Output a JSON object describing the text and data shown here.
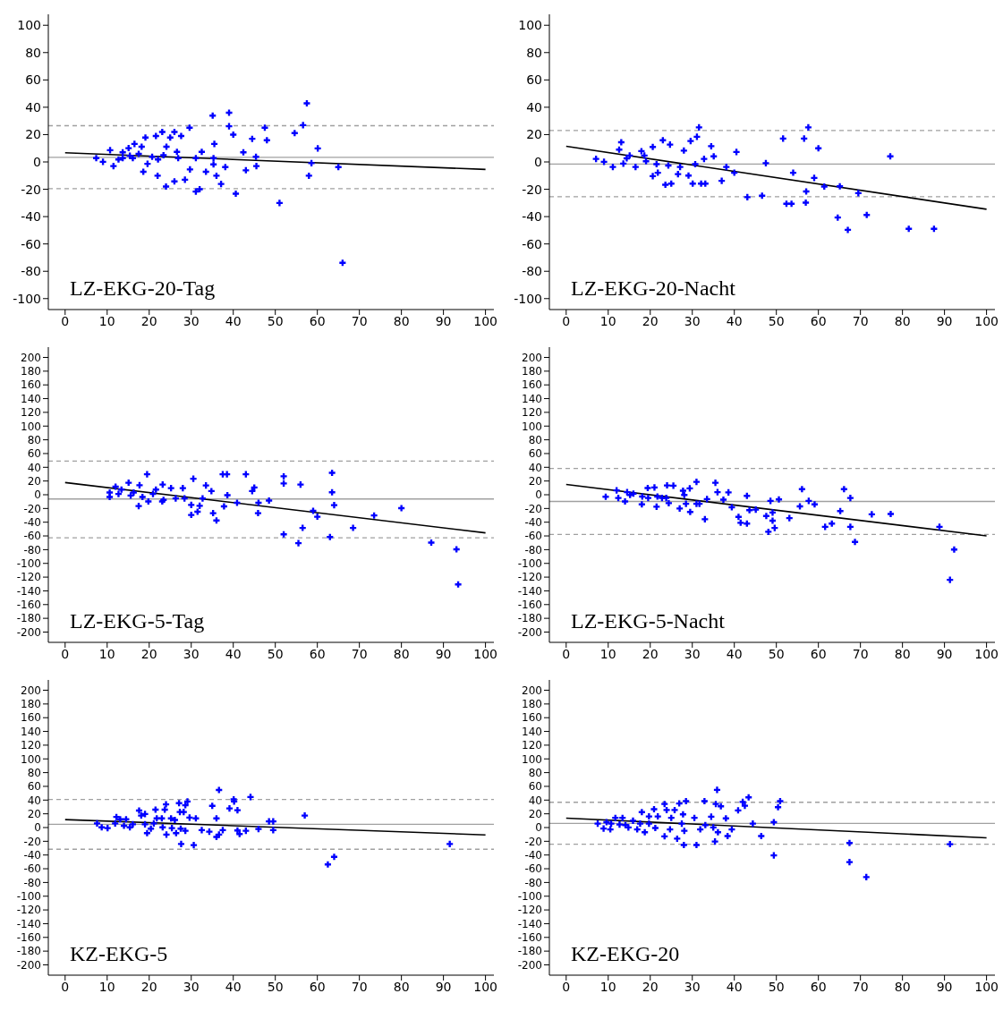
{
  "chart_data": [
    {
      "type": "scatter",
      "title": "LZ-EKG-20-Tag",
      "xlim": [
        -4,
        102
      ],
      "ylim": [
        -108,
        108
      ],
      "xticks": [
        0,
        10,
        20,
        30,
        40,
        50,
        60,
        70,
        80,
        90,
        100
      ],
      "yticks": [
        -100,
        -80,
        -60,
        -40,
        -20,
        0,
        20,
        40,
        60,
        80,
        100
      ],
      "ref_lines": [
        {
          "axis": "y",
          "value": 3.4,
          "color": "#a0a0a0",
          "line_style": "solid"
        },
        {
          "axis": "y",
          "value": 26.5,
          "color": "#a0a0a0",
          "line_style": "dashed"
        },
        {
          "axis": "y",
          "value": -19.6,
          "color": "#a0a0a0",
          "line_style": "dashed"
        }
      ],
      "series": [
        {
          "type": "scatter",
          "color": "#0000ff",
          "marker": "cross",
          "x": [
            7.4,
            9.0,
            10.7,
            11.5,
            12.7,
            13.7,
            15.1,
            16.5,
            16.1,
            18.2,
            18.6,
            19.1,
            19.6,
            21.6,
            22.0,
            23.1,
            24.0,
            24.1,
            25.0,
            26.0,
            26.0,
            26.6,
            27.6,
            28.5,
            29.6,
            29.7,
            31.1,
            32.0,
            32.5,
            33.5,
            35.1,
            35.5,
            35.3,
            36.0,
            37.1,
            38.1,
            39.0,
            39.0,
            40.0,
            40.6,
            42.4,
            43.0,
            44.5,
            45.4,
            45.5,
            47.5,
            48.0,
            51.0,
            54.6,
            56.6,
            57.5,
            58.0,
            58.6,
            60.1,
            65.0,
            66.0,
            13.7,
            15.4,
            17.5,
            20.7,
            22.1,
            23.4,
            26.9,
            31.1,
            35.3
          ],
          "values": [
            2.8,
            0.1,
            8.6,
            -3.0,
            1.8,
            7.0,
            10.1,
            13.2,
            2.8,
            11.1,
            -7.2,
            17.8,
            -1.4,
            19.0,
            -10.1,
            21.9,
            -18.0,
            11.1,
            17.8,
            21.9,
            -14.2,
            7.4,
            19.0,
            -13.0,
            25.0,
            -5.5,
            -21.7,
            -20.0,
            7.4,
            -7.2,
            33.9,
            13.2,
            -1.8,
            -10.1,
            -16.1,
            -3.8,
            36.0,
            26.1,
            20.0,
            -23.2,
            7.0,
            -6.1,
            16.9,
            3.8,
            -3.0,
            25.0,
            15.9,
            -30.0,
            21.1,
            26.9,
            42.9,
            -10.1,
            -0.9,
            9.9,
            -3.8,
            -73.8,
            2.8,
            4.5,
            5.9,
            3.8,
            1.8,
            4.9,
            2.8,
            2.8,
            2.8
          ]
        },
        {
          "type": "line",
          "color": "#000000",
          "line_style": "solid",
          "x": [
            0,
            100
          ],
          "values": [
            6.7,
            -5.5
          ]
        }
      ]
    },
    {
      "type": "scatter",
      "title": "LZ-EKG-20-Nacht",
      "xlim": [
        -4,
        102
      ],
      "ylim": [
        -108,
        108
      ],
      "xticks": [
        0,
        10,
        20,
        30,
        40,
        50,
        60,
        70,
        80,
        90,
        100
      ],
      "yticks": [
        -100,
        -80,
        -60,
        -40,
        -20,
        0,
        20,
        40,
        60,
        80,
        100
      ],
      "ref_lines": [
        {
          "axis": "y",
          "value": -1.6,
          "color": "#a0a0a0",
          "line_style": "solid"
        },
        {
          "axis": "y",
          "value": 23.0,
          "color": "#a0a0a0",
          "line_style": "dashed"
        },
        {
          "axis": "y",
          "value": -25.5,
          "color": "#a0a0a0",
          "line_style": "dashed"
        }
      ],
      "series": [
        {
          "type": "scatter",
          "color": "#0000ff",
          "marker": "cross",
          "x": [
            7.1,
            9.0,
            11.1,
            12.6,
            13.1,
            13.6,
            15.1,
            16.5,
            17.9,
            19.0,
            20.6,
            20.6,
            21.8,
            23.0,
            23.6,
            24.7,
            25.0,
            26.6,
            28.0,
            29.1,
            29.6,
            30.1,
            31.1,
            31.6,
            32.1,
            33.1,
            32.8,
            34.5,
            35.1,
            37.0,
            38.1,
            40.0,
            40.5,
            43.1,
            46.6,
            47.5,
            51.6,
            52.4,
            53.6,
            54.0,
            56.6,
            57.0,
            57.1,
            57.6,
            59.0,
            60.0,
            61.4,
            65.1,
            64.6,
            67.0,
            69.5,
            71.5,
            77.1,
            81.5,
            87.5,
            14.4,
            18.6,
            21.5,
            24.3,
            27.1,
            30.7
          ],
          "values": [
            2.2,
            0.1,
            -3.7,
            9.0,
            14.4,
            -1.2,
            4.7,
            -3.7,
            7.9,
            0.5,
            11.0,
            -10.4,
            -7.9,
            15.9,
            -16.7,
            12.7,
            -15.9,
            -8.9,
            8.3,
            -10.0,
            15.3,
            -15.9,
            18.4,
            25.3,
            -15.9,
            -15.9,
            2.2,
            11.5,
            4.1,
            -13.8,
            -3.7,
            -7.9,
            7.3,
            -25.8,
            -24.7,
            -0.9,
            17.1,
            -30.6,
            -30.6,
            -7.9,
            17.1,
            -29.8,
            -21.6,
            25.3,
            -11.7,
            10.0,
            -18.0,
            -17.8,
            -40.7,
            -49.7,
            -22.8,
            -38.8,
            4.1,
            -48.9,
            -48.9,
            2.6,
            4.7,
            -1.6,
            -2.6,
            -3.7,
            -1.6
          ]
        },
        {
          "type": "line",
          "color": "#000000",
          "line_style": "solid",
          "x": [
            0,
            100
          ],
          "values": [
            11.5,
            -34.6
          ]
        }
      ]
    },
    {
      "type": "scatter",
      "title": "LZ-EKG-5-Tag",
      "xlim": [
        -4,
        102
      ],
      "ylim": [
        -215,
        215
      ],
      "xticks": [
        0,
        10,
        20,
        30,
        40,
        50,
        60,
        70,
        80,
        90,
        100
      ],
      "yticks": [
        -200,
        -180,
        -160,
        -140,
        -120,
        -100,
        -80,
        -60,
        -40,
        -20,
        0,
        20,
        40,
        60,
        80,
        100,
        120,
        140,
        160,
        180,
        200
      ],
      "ref_lines": [
        {
          "axis": "y",
          "value": -6.2,
          "color": "#a0a0a0",
          "line_style": "solid"
        },
        {
          "axis": "y",
          "value": 49.1,
          "color": "#a0a0a0",
          "line_style": "dashed"
        },
        {
          "axis": "y",
          "value": -62.8,
          "color": "#a0a0a0",
          "line_style": "dashed"
        }
      ],
      "series": [
        {
          "type": "scatter",
          "color": "#0000ff",
          "marker": "cross",
          "x": [
            10.6,
            10.6,
            12.0,
            13.4,
            15.1,
            15.6,
            17.5,
            17.7,
            19.5,
            19.8,
            21.6,
            23.2,
            23.1,
            25.2,
            28.0,
            30.0,
            30.0,
            30.5,
            31.5,
            32.0,
            33.5,
            34.8,
            35.2,
            36.0,
            37.5,
            38.5,
            38.6,
            37.8,
            40.9,
            43.0,
            44.5,
            45.0,
            45.9,
            46.0,
            48.5,
            52.0,
            52.0,
            52.0,
            56.0,
            56.5,
            55.5,
            59.0,
            60.0,
            63.0,
            63.5,
            63.5,
            64.0,
            68.5,
            73.5,
            80.0,
            87.1,
            93.1,
            93.5,
            12.7,
            16.3,
            18.4,
            20.9,
            23.4,
            26.3,
            28.4,
            32.7
          ],
          "values": [
            -3.2,
            3.2,
            11.8,
            7.5,
            17.5,
            -1.1,
            -16.5,
            13.9,
            29.8,
            -9.7,
            7.5,
            14.8,
            -9.7,
            9.6,
            9.6,
            -29.4,
            -14.8,
            23.3,
            -24.7,
            -16.1,
            13.5,
            5.3,
            -26.8,
            -37.5,
            29.8,
            29.8,
            -0.7,
            -17.0,
            -11.8,
            29.8,
            5.3,
            10.5,
            -26.8,
            -11.8,
            -8.4,
            26.8,
            16.5,
            -57.7,
            14.8,
            -48.3,
            -70.5,
            -23.4,
            -32.0,
            -61.5,
            31.9,
            3.6,
            -15.2,
            -48.3,
            -30.2,
            -19.5,
            -69.7,
            -79.5,
            -130.6,
            1.1,
            3.2,
            -3.2,
            1.1,
            -7.5,
            -5.4,
            -5.4,
            -5.4
          ]
        },
        {
          "type": "line",
          "color": "#000000",
          "line_style": "solid",
          "x": [
            0,
            100
          ],
          "values": [
            17.8,
            -55.5
          ]
        }
      ]
    },
    {
      "type": "scatter",
      "title": "LZ-EKG-5-Nacht",
      "xlim": [
        -4,
        102
      ],
      "ylim": [
        -215,
        215
      ],
      "xticks": [
        0,
        10,
        20,
        30,
        40,
        50,
        60,
        70,
        80,
        90,
        100
      ],
      "yticks": [
        -200,
        -180,
        -160,
        -140,
        -120,
        -100,
        -80,
        -60,
        -40,
        -20,
        0,
        20,
        40,
        60,
        80,
        100,
        120,
        140,
        160,
        180,
        200
      ],
      "ref_lines": [
        {
          "axis": "y",
          "value": -9.8,
          "color": "#a0a0a0",
          "line_style": "solid"
        },
        {
          "axis": "y",
          "value": 38.2,
          "color": "#a0a0a0",
          "line_style": "dashed"
        },
        {
          "axis": "y",
          "value": -57.8,
          "color": "#a0a0a0",
          "line_style": "dashed"
        }
      ],
      "series": [
        {
          "type": "scatter",
          "color": "#0000ff",
          "marker": "cross",
          "x": [
            9.4,
            12.0,
            12.4,
            14.0,
            14.5,
            16.0,
            18.0,
            19.4,
            19.5,
            21.0,
            21.5,
            22.8,
            24.0,
            25.5,
            24.4,
            27.0,
            27.8,
            28.5,
            29.4,
            29.5,
            31.0,
            31.7,
            33.0,
            33.5,
            35.5,
            36.0,
            37.4,
            38.6,
            39.4,
            41.0,
            41.5,
            43.0,
            43.0,
            43.6,
            45.1,
            47.6,
            48.1,
            48.6,
            49.1,
            49.1,
            49.6,
            50.6,
            53.1,
            55.6,
            56.1,
            57.7,
            59.1,
            61.6,
            63.2,
            65.2,
            66.1,
            67.6,
            67.6,
            68.7,
            72.7,
            77.2,
            88.8,
            92.3,
            91.3,
            15.2,
            18.1,
            21.7,
            23.8,
            28.1,
            31.0
          ],
          "values": [
            -3.0,
            6.4,
            -4.7,
            -9.8,
            3.8,
            1.7,
            -14.0,
            9.8,
            -4.7,
            10.6,
            -17.4,
            -4.7,
            13.6,
            13.2,
            -12.3,
            -20.0,
            5.9,
            -13.2,
            9.3,
            -25.1,
            18.7,
            -13.2,
            -35.7,
            -6.4,
            17.4,
            3.8,
            -7.2,
            3.4,
            -18.3,
            -32.3,
            -40.8,
            -1.7,
            -42.0,
            -22.5,
            -21.7,
            -31.0,
            -54.0,
            -8.9,
            -25.9,
            -37.8,
            -48.4,
            -6.8,
            -34.0,
            -17.0,
            8.1,
            -8.9,
            -14.0,
            -46.7,
            -42.0,
            -23.8,
            8.1,
            -4.7,
            -46.7,
            -68.8,
            -28.5,
            -28.0,
            -46.7,
            -79.8,
            -124.0,
            -0.4,
            -2.6,
            -2.6,
            -4.7,
            -0.4,
            -13.2
          ]
        },
        {
          "type": "line",
          "color": "#000000",
          "line_style": "solid",
          "x": [
            0,
            100
          ],
          "values": [
            14.9,
            -59.9
          ]
        }
      ]
    },
    {
      "type": "scatter",
      "title": "KZ-EKG-5",
      "xlim": [
        -4,
        102
      ],
      "ylim": [
        -215,
        215
      ],
      "xticks": [
        0,
        10,
        20,
        30,
        40,
        50,
        60,
        70,
        80,
        90,
        100
      ],
      "yticks": [
        -200,
        -180,
        -160,
        -140,
        -120,
        -100,
        -80,
        -60,
        -40,
        -20,
        0,
        20,
        40,
        60,
        80,
        100,
        120,
        140,
        160,
        180,
        200
      ],
      "ref_lines": [
        {
          "axis": "y",
          "value": 4.7,
          "color": "#a0a0a0",
          "line_style": "solid"
        },
        {
          "axis": "y",
          "value": 41.0,
          "color": "#a0a0a0",
          "line_style": "dashed"
        },
        {
          "axis": "y",
          "value": -31.6,
          "color": "#a0a0a0",
          "line_style": "dashed"
        }
      ],
      "series": [
        {
          "type": "scatter",
          "color": "#0000ff",
          "marker": "cross",
          "x": [
            7.6,
            8.7,
            10.1,
            12.2,
            13.1,
            14.5,
            15.4,
            17.6,
            18.1,
            19.0,
            19.5,
            20.4,
            21.5,
            21.8,
            23.0,
            23.7,
            24.0,
            24.1,
            25.2,
            26.1,
            26.4,
            27.1,
            27.3,
            27.6,
            28.2,
            28.6,
            29.1,
            28.6,
            29.6,
            30.6,
            31.1,
            32.5,
            34.3,
            35.0,
            36.0,
            36.6,
            36.0,
            36.6,
            37.5,
            39.1,
            40.1,
            40.2,
            41.0,
            41.0,
            41.5,
            43.0,
            44.1,
            46.0,
            48.5,
            49.5,
            49.5,
            57.0,
            64.0,
            62.5,
            91.5,
            11.9,
            14.0,
            16.1,
            19.0,
            21.1,
            23.2,
            25.4,
            27.5
          ],
          "values": [
            6.0,
            0.4,
            -0.8,
            15.4,
            12.0,
            12.0,
            0.4,
            24.8,
            17.5,
            19.7,
            -8.1,
            -1.7,
            26.1,
            13.3,
            13.3,
            26.1,
            33.8,
            -10.2,
            13.3,
            11.1,
            -8.1,
            35.5,
            22.7,
            -23.9,
            22.7,
            32.5,
            38.0,
            -4.7,
            14.5,
            -25.6,
            13.3,
            -3.8,
            -6.0,
            31.6,
            13.3,
            54.7,
            -13.7,
            -10.2,
            -3.8,
            27.8,
            41.0,
            38.0,
            25.2,
            -4.3,
            -9.4,
            -4.7,
            44.5,
            -2.1,
            9.0,
            9.0,
            -3.8,
            17.5,
            -42.7,
            -53.8,
            -23.9,
            6.0,
            2.6,
            4.7,
            4.7,
            6.0,
            0.4,
            -0.8,
            -1.7
          ]
        },
        {
          "type": "line",
          "color": "#000000",
          "line_style": "solid",
          "x": [
            0,
            100
          ],
          "values": [
            11.6,
            -10.7
          ]
        }
      ]
    },
    {
      "type": "scatter",
      "title": "KZ-EKG-20",
      "xlim": [
        -4,
        102
      ],
      "ylim": [
        -215,
        215
      ],
      "xticks": [
        0,
        10,
        20,
        30,
        40,
        50,
        60,
        70,
        80,
        90,
        100
      ],
      "yticks": [
        -200,
        -180,
        -160,
        -140,
        -120,
        -100,
        -80,
        -60,
        -40,
        -20,
        0,
        20,
        40,
        60,
        80,
        100,
        120,
        140,
        160,
        180,
        200
      ],
      "ref_lines": [
        {
          "axis": "y",
          "value": 6.1,
          "color": "#a0a0a0",
          "line_style": "solid"
        },
        {
          "axis": "y",
          "value": 36.8,
          "color": "#a0a0a0",
          "line_style": "dashed"
        },
        {
          "axis": "y",
          "value": -24.2,
          "color": "#a0a0a0",
          "line_style": "dashed"
        }
      ],
      "series": [
        {
          "type": "scatter",
          "color": "#0000ff",
          "marker": "cross",
          "x": [
            7.5,
            8.9,
            9.6,
            10.5,
            11.7,
            12.7,
            13.4,
            14.8,
            15.9,
            16.9,
            18.0,
            18.7,
            19.7,
            20.9,
            21.8,
            23.4,
            23.4,
            23.9,
            25.0,
            25.8,
            26.4,
            26.9,
            27.8,
            28.0,
            28.5,
            28.1,
            30.5,
            31.0,
            31.9,
            32.9,
            34.5,
            35.0,
            35.4,
            35.6,
            35.9,
            36.1,
            36.8,
            38.0,
            38.4,
            39.4,
            40.9,
            42.0,
            42.5,
            43.4,
            44.4,
            46.4,
            49.4,
            49.4,
            50.4,
            50.9,
            67.4,
            67.4,
            71.4,
            91.3,
            10.7,
            14.1,
            17.6,
            19.7,
            21.2,
            24.7,
            27.5,
            33.1
          ],
          "values": [
            5.7,
            -1.5,
            7.8,
            -2.7,
            14.1,
            4.4,
            14.1,
            0.2,
            9.9,
            -2.7,
            22.5,
            -6.9,
            16.2,
            26.7,
            16.2,
            34.3,
            -12.8,
            25.5,
            14.1,
            25.5,
            -16.2,
            35.1,
            19.2,
            -25.4,
            38.5,
            -4.8,
            14.1,
            -25.4,
            -2.7,
            38.5,
            15.8,
            0.2,
            -20.4,
            34.3,
            54.9,
            -6.9,
            30.9,
            13.3,
            -12.4,
            -2.7,
            25.0,
            37.3,
            31.8,
            44.0,
            5.7,
            -12.4,
            7.8,
            -40.6,
            29.7,
            38.5,
            -22.5,
            -50.3,
            -72.1,
            -24.2,
            5.7,
            3.6,
            5.7,
            5.7,
            -0.6,
            -2.7,
            5.7,
            3.6
          ]
        },
        {
          "type": "line",
          "color": "#000000",
          "line_style": "solid",
          "x": [
            0,
            100
          ],
          "values": [
            13.7,
            -14.9
          ]
        }
      ]
    }
  ]
}
